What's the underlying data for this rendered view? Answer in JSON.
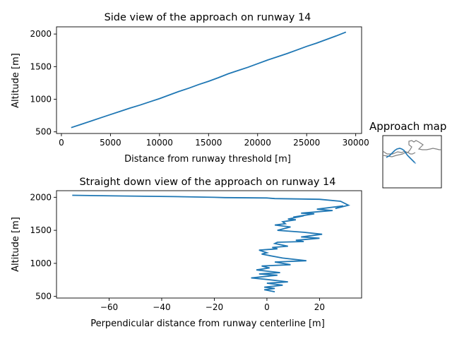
{
  "colors": {
    "line": "#1f77b4",
    "map_line": "#808080",
    "axes": "#000000"
  },
  "chart_data": [
    {
      "type": "line",
      "title": "Side view of the approach on runway 14",
      "xlabel": "Distance from runway threshold [m]",
      "ylabel": "Altitude [m]",
      "xlim": [
        -500,
        30600
      ],
      "ylim": [
        475,
        2110
      ],
      "xticks": [
        0,
        5000,
        10000,
        15000,
        20000,
        25000,
        30000
      ],
      "xtick_labels": [
        "0",
        "5000",
        "10000",
        "15000",
        "20000",
        "25000",
        "30000"
      ],
      "yticks": [
        500,
        1000,
        1500,
        2000
      ],
      "ytick_labels": [
        "500",
        "1000",
        "1500",
        "2000"
      ],
      "grid": false,
      "series": [
        {
          "x": [
            1000,
            2000,
            3000,
            4000,
            5000,
            6000,
            7000,
            8000,
            9000,
            10000,
            11000,
            12000,
            13000,
            14000,
            15000,
            16000,
            17000,
            18000,
            19000,
            20000,
            21000,
            22000,
            23000,
            24000,
            25000,
            26000,
            27000,
            28000,
            29000
          ],
          "y": [
            565,
            615,
            665,
            715,
            765,
            815,
            865,
            910,
            960,
            1010,
            1065,
            1120,
            1170,
            1225,
            1275,
            1330,
            1390,
            1440,
            1490,
            1545,
            1600,
            1650,
            1700,
            1755,
            1810,
            1860,
            1915,
            1970,
            2030
          ]
        }
      ]
    },
    {
      "type": "line",
      "title": "Straight down view of the approach on runway 14",
      "xlabel": "Perpendicular distance from runway centerline [m]",
      "ylabel": "Altitude [m]",
      "xlim": [
        -80,
        36
      ],
      "ylim": [
        475,
        2100
      ],
      "xticks": [
        -60,
        -40,
        -20,
        0,
        20
      ],
      "xtick_labels": [
        "−60",
        "−40",
        "−20",
        "0",
        "20"
      ],
      "yticks": [
        500,
        1000,
        1500,
        2000
      ],
      "ytick_labels": [
        "500",
        "1000",
        "1500",
        "2000"
      ],
      "grid": false,
      "series": [
        {
          "x": [
            -74,
            -55,
            -35,
            -20,
            -16,
            0,
            3,
            20,
            28,
            31,
            26,
            29,
            19,
            25,
            13,
            18,
            10,
            14,
            8,
            11,
            6,
            7,
            3,
            9,
            4,
            14,
            21,
            13,
            20,
            11,
            14,
            4,
            3,
            8,
            2,
            4,
            -3,
            0,
            -2,
            6,
            15,
            3,
            9,
            -2,
            1,
            -4,
            5,
            -3,
            4,
            -6,
            -1,
            8,
            0,
            6,
            -1,
            3,
            -1,
            3
          ],
          "y": [
            2030,
            2020,
            2010,
            2000,
            1995,
            1990,
            1980,
            1970,
            1940,
            1880,
            1830,
            1870,
            1820,
            1800,
            1760,
            1750,
            1700,
            1720,
            1670,
            1660,
            1630,
            1600,
            1580,
            1550,
            1500,
            1470,
            1440,
            1400,
            1380,
            1350,
            1330,
            1320,
            1300,
            1260,
            1240,
            1220,
            1200,
            1160,
            1140,
            1080,
            1040,
            1020,
            980,
            960,
            930,
            900,
            860,
            840,
            820,
            780,
            760,
            720,
            700,
            670,
            640,
            620,
            600,
            570
          ]
        }
      ]
    }
  ],
  "map": {
    "title": "Approach map"
  }
}
